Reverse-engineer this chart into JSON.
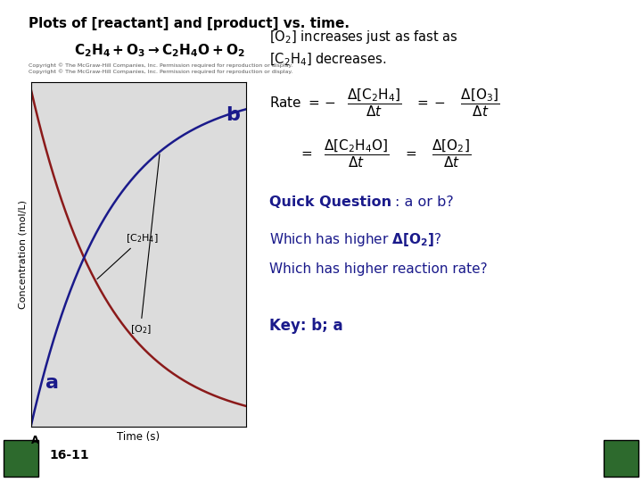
{
  "title": "Plots of [reactant] and [product] vs. time.",
  "reaction": "C$_2$H$_4$ + O$_3$ → C$_2$H$_4$O + O$_2$",
  "xlabel": "Time (s)",
  "ylabel": "Concentration (mol/L)",
  "graph_bg": "#dcdcdc",
  "reactant_color": "#8b1a1a",
  "product_color": "#1a1a8b",
  "label_C2H4": "[C$_2$H$_4$]",
  "label_O2": "[O$_2$]",
  "label_b": "b",
  "label_a": "a",
  "copyright": "Copyright © The McGraw-Hill Companies, Inc. Permission required for reproduction or display.",
  "green_rect_color": "#2d6a2d",
  "bg_color": "#ffffff",
  "text_dark_blue": "#1a1a8b",
  "text_black": "#000000",
  "slide_num": "16-11"
}
